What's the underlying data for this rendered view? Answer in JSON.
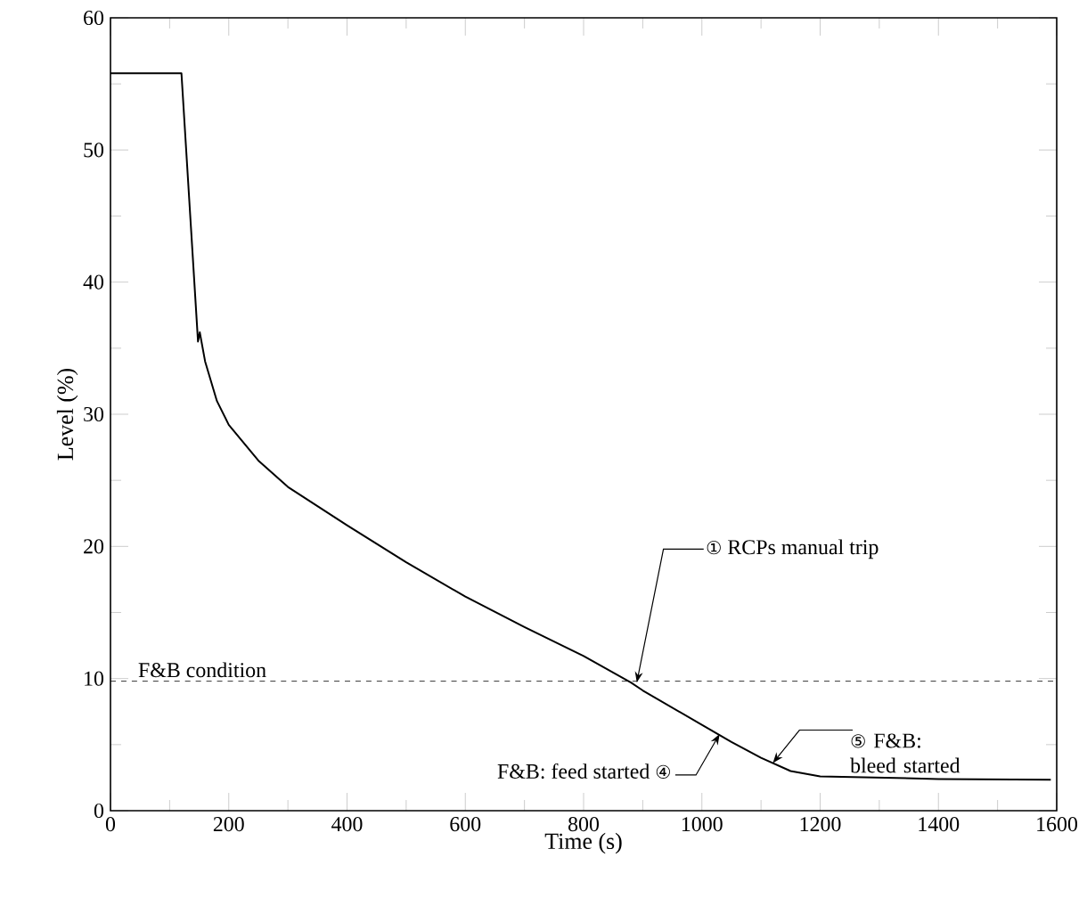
{
  "chart_data": {
    "type": "line",
    "xlabel": "Time (s)",
    "ylabel": "Level (%)",
    "xlim": [
      0,
      1600
    ],
    "ylim": [
      0,
      60
    ],
    "xticks": [
      0,
      200,
      400,
      600,
      800,
      1000,
      1200,
      1400,
      1600
    ],
    "yticks": [
      0,
      10,
      20,
      30,
      40,
      50,
      60
    ],
    "x": [
      0,
      120,
      148,
      151,
      160,
      180,
      200,
      250,
      300,
      400,
      500,
      600,
      700,
      800,
      880,
      900,
      1000,
      1050,
      1100,
      1150,
      1200,
      1300,
      1400,
      1590
    ],
    "values": [
      55.8,
      55.8,
      35.5,
      36.2,
      34,
      31,
      29.2,
      26.5,
      24.5,
      21.6,
      18.8,
      16.2,
      13.9,
      11.7,
      9.7,
      9.1,
      6.5,
      5.2,
      4.0,
      3.0,
      2.6,
      2.5,
      2.4,
      2.35
    ],
    "ref_lines": [
      {
        "axis": "y",
        "value": 9.8,
        "label": "F&B condition",
        "line_style": "dashed"
      }
    ],
    "annotations": [
      {
        "text": "① RCPs manual trip",
        "x": 890,
        "y": 9.7
      },
      {
        "text": "F&B: feed started ④",
        "x": 1030,
        "y": 5.8
      },
      {
        "text": "⑤ F&B: bleed started",
        "x": 1120,
        "y": 3.6
      }
    ]
  }
}
